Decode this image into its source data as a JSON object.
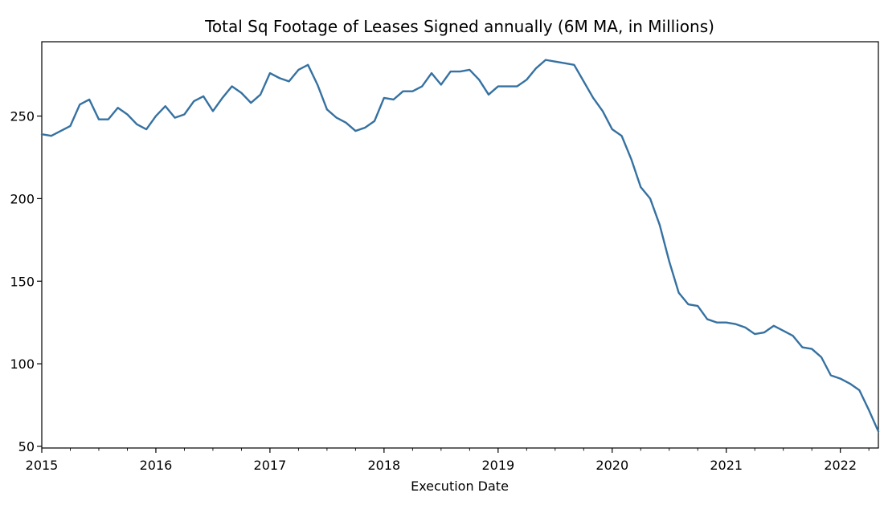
{
  "chart_data": {
    "type": "line",
    "title": "Total Sq Footage of Leases Signed annually (6M MA, in Millions)",
    "xlabel": "Execution Date",
    "ylabel": "",
    "x_ticks": [
      "2015",
      "2016",
      "2017",
      "2018",
      "2019",
      "2020",
      "2021",
      "2022"
    ],
    "y_ticks": [
      50,
      100,
      150,
      200,
      250
    ],
    "xlim": [
      "2015-01",
      "2022-05"
    ],
    "ylim": [
      49,
      295
    ],
    "grid": false,
    "legend": "none",
    "colors": {
      "line": "#3571a1",
      "axes": "#000000"
    },
    "series": [
      {
        "x": [
          "2015-01",
          "2015-02",
          "2015-03",
          "2015-04",
          "2015-05",
          "2015-06",
          "2015-07",
          "2015-08",
          "2015-09",
          "2015-10",
          "2015-11",
          "2015-12",
          "2016-01",
          "2016-02",
          "2016-03",
          "2016-04",
          "2016-05",
          "2016-06",
          "2016-07",
          "2016-08",
          "2016-09",
          "2016-10",
          "2016-11",
          "2016-12",
          "2017-01",
          "2017-02",
          "2017-03",
          "2017-04",
          "2017-05",
          "2017-06",
          "2017-07",
          "2017-08",
          "2017-09",
          "2017-10",
          "2017-11",
          "2017-12",
          "2018-01",
          "2018-02",
          "2018-03",
          "2018-04",
          "2018-05",
          "2018-06",
          "2018-07",
          "2018-08",
          "2018-09",
          "2018-10",
          "2018-11",
          "2018-12",
          "2019-01",
          "2019-02",
          "2019-03",
          "2019-04",
          "2019-05",
          "2019-06",
          "2019-07",
          "2019-08",
          "2019-09",
          "2019-10",
          "2019-11",
          "2019-12",
          "2020-01",
          "2020-02",
          "2020-03",
          "2020-04",
          "2020-05",
          "2020-06",
          "2020-07",
          "2020-08",
          "2020-09",
          "2020-10",
          "2020-11",
          "2020-12",
          "2021-01",
          "2021-02",
          "2021-03",
          "2021-04",
          "2021-05",
          "2021-06",
          "2021-07",
          "2021-08",
          "2021-09",
          "2021-10",
          "2021-11",
          "2021-12",
          "2022-01",
          "2022-02",
          "2022-03",
          "2022-04",
          "2022-05"
        ],
        "values": [
          239,
          238,
          241,
          244,
          257,
          260,
          248,
          248,
          255,
          251,
          245,
          242,
          250,
          256,
          249,
          251,
          259,
          262,
          253,
          261,
          268,
          264,
          258,
          263,
          276,
          273,
          271,
          278,
          281,
          269,
          254,
          249,
          246,
          241,
          243,
          247,
          261,
          260,
          265,
          265,
          268,
          276,
          269,
          277,
          277,
          278,
          272,
          263,
          268,
          268,
          268,
          272,
          279,
          284,
          283,
          282,
          281,
          271,
          261,
          253,
          242,
          238,
          224,
          207,
          200,
          184,
          162,
          143,
          136,
          135,
          127,
          125,
          125,
          124,
          122,
          118,
          119,
          123,
          120,
          117,
          110,
          109,
          104,
          93,
          91,
          88,
          84,
          72,
          59
        ]
      }
    ]
  }
}
